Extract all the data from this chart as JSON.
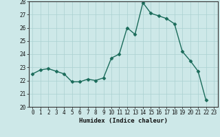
{
  "x": [
    0,
    1,
    2,
    3,
    4,
    5,
    6,
    7,
    8,
    9,
    10,
    11,
    12,
    13,
    14,
    15,
    16,
    17,
    18,
    19,
    20,
    21,
    22,
    23
  ],
  "y": [
    22.5,
    22.8,
    22.9,
    22.7,
    22.5,
    21.9,
    21.9,
    22.1,
    22.0,
    22.2,
    23.7,
    24.0,
    26.0,
    25.5,
    27.9,
    27.1,
    26.9,
    26.7,
    26.3,
    24.2,
    23.5,
    22.7,
    20.5,
    null
  ],
  "line_color": "#1a6b5a",
  "marker": "D",
  "markersize": 2.5,
  "linewidth": 1.0,
  "bg_color": "#cde8e8",
  "grid_color": "#aad0d0",
  "xlabel": "Humidex (Indice chaleur)",
  "xlim": [
    -0.5,
    23.5
  ],
  "ylim": [
    20,
    28
  ],
  "yticks": [
    20,
    21,
    22,
    23,
    24,
    25,
    26,
    27,
    28
  ],
  "xticks": [
    0,
    1,
    2,
    3,
    4,
    5,
    6,
    7,
    8,
    9,
    10,
    11,
    12,
    13,
    14,
    15,
    16,
    17,
    18,
    19,
    20,
    21,
    22,
    23
  ],
  "tick_fontsize": 5.5,
  "label_fontsize": 6.5
}
